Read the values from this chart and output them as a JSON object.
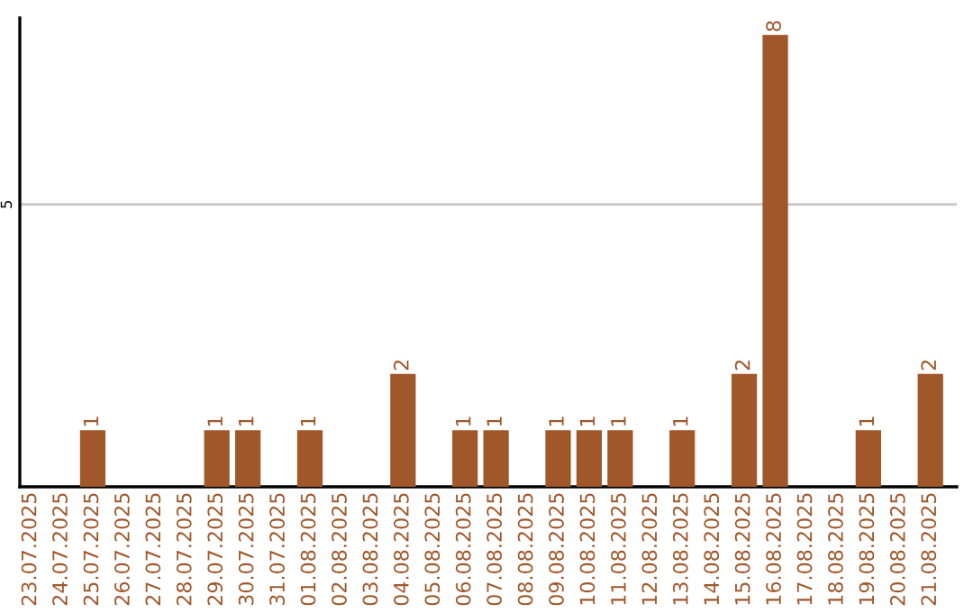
{
  "chart_data": {
    "type": "bar",
    "categories": [
      "23.07.2025",
      "24.07.2025",
      "25.07.2025",
      "26.07.2025",
      "27.07.2025",
      "28.07.2025",
      "29.07.2025",
      "30.07.2025",
      "31.07.2025",
      "01.08.2025",
      "02.08.2025",
      "03.08.2025",
      "04.08.2025",
      "05.08.2025",
      "06.08.2025",
      "07.08.2025",
      "08.08.2025",
      "09.08.2025",
      "10.08.2025",
      "11.08.2025",
      "12.08.2025",
      "13.08.2025",
      "14.08.2025",
      "15.08.2025",
      "16.08.2025",
      "17.08.2025",
      "18.08.2025",
      "19.08.2025",
      "20.08.2025",
      "21.08.2025"
    ],
    "values": [
      0,
      0,
      1,
      0,
      0,
      0,
      1,
      1,
      0,
      1,
      0,
      0,
      2,
      0,
      1,
      1,
      0,
      1,
      1,
      1,
      0,
      1,
      0,
      2,
      8,
      0,
      0,
      1,
      0,
      2
    ],
    "value_labels": [
      null,
      null,
      "1",
      null,
      null,
      null,
      "1",
      "1",
      null,
      "1",
      null,
      null,
      "2",
      null,
      "1",
      "1",
      null,
      "1",
      "1",
      "1",
      null,
      "1",
      null,
      "2",
      "8",
      null,
      null,
      "1",
      null,
      "2"
    ],
    "color": "#a0572a",
    "ylim": [
      0,
      8.3
    ],
    "yticks": [
      5
    ],
    "grid": "y",
    "legend": false
  }
}
